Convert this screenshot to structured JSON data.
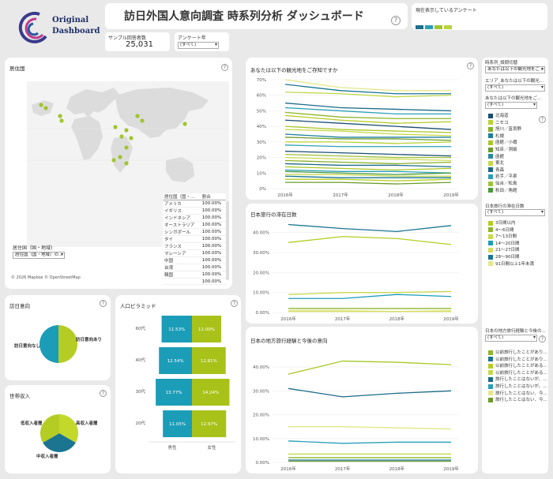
{
  "logo": {
    "line1": "Original",
    "line2": "Dashboard"
  },
  "header": {
    "title": "訪日外国人意向調査 時系列分析 ダッシュボード",
    "help": "?"
  },
  "kpi": {
    "label": "サンプル回答者数",
    "value": "25,031"
  },
  "filter_year": {
    "label": "アンケート年",
    "value": "(すべて)"
  },
  "current_survey": {
    "label": "現在表示しているアンケート",
    "colors": [
      "#1d6f8c",
      "#2aa0b7",
      "#a2c42e",
      "#b9d33a"
    ]
  },
  "map": {
    "title": "居住国",
    "help": "?",
    "search_label": "居住国（国・地域)",
    "search_placeholder": "居住国（国・地域）の...",
    "credit": "© 2026 Mapbox © OpenStreetMap",
    "table": {
      "headers": [
        "居住国（国・...",
        "割合"
      ],
      "rows": [
        [
          "アメリカ",
          "100.00%"
        ],
        [
          "イギリス",
          "100.00%"
        ],
        [
          "インドネシア",
          "100.00%"
        ],
        [
          "オーストラリア",
          "100.00%"
        ],
        [
          "シンガポール",
          "100.00%"
        ],
        [
          "タイ",
          "100.00%"
        ],
        [
          "フランス",
          "100.00%"
        ],
        [
          "マレーシア",
          "100.00%"
        ],
        [
          "中国",
          "100.00%"
        ],
        [
          "台湾",
          "100.00%"
        ],
        [
          "韓国",
          "100.00%"
        ],
        [
          "",
          "100.00%"
        ]
      ]
    }
  },
  "intent": {
    "title": "訪日意向",
    "help": "?",
    "labels": [
      "訪日意向なし",
      "訪日意向あり"
    ],
    "colors": [
      "#1b9db8",
      "#b5cc24"
    ]
  },
  "income": {
    "title": "世帯収入",
    "help": "?",
    "labels": [
      "低収入者層",
      "高収入者層",
      "中収入者層"
    ],
    "colors": [
      "#b5cc24",
      "#c2d92c",
      "#1b7591"
    ]
  },
  "pyramid": {
    "title": "人口ピラミッド",
    "help": "?",
    "rows": [
      {
        "age": "60代",
        "male": "11.53%",
        "female": "11.09%"
      },
      {
        "age": "40代",
        "male": "12.54%",
        "female": "12.81%"
      },
      {
        "age": "30代",
        "male": "13.77%",
        "female": "14.24%"
      },
      {
        "age": "20代",
        "male": "11.05%",
        "female": "12.97%"
      }
    ],
    "xlabels": [
      "男性",
      "女性"
    ],
    "colors": {
      "male": "#1b9db8",
      "female": "#a9c21a"
    }
  },
  "right_filters": {
    "f1_label": "時系列_設問切替",
    "f1_value": "あなたは以下の観光地をご...",
    "f2_label": "エリア_あなたは以下の観光...",
    "f2_value": "(すべて)",
    "f3_label": "あなたは以下の観光地をご...",
    "f3_value": "(すべて)",
    "f4_label": "日本旅行の滞在日数",
    "f4_value": "(すべて)",
    "f5_label": "日本の地方旅行経験と今後の...",
    "f5_value": "(すべて)"
  },
  "legend1": [
    {
      "label": "北海道",
      "color": "#1b4f72"
    },
    {
      "label": "ニセコ",
      "color": "#b8d232"
    },
    {
      "label": "旭川／富良野",
      "color": "#8bb02a"
    },
    {
      "label": "札幌",
      "color": "#1d7f9a"
    },
    {
      "label": "函館／小樽",
      "color": "#a8c828"
    },
    {
      "label": "知床／洞爺",
      "color": "#6b9c2c"
    },
    {
      "label": "函館",
      "color": "#2a8aa0"
    },
    {
      "label": "東北",
      "color": "#c2d84a"
    },
    {
      "label": "青森",
      "color": "#1b6a88"
    },
    {
      "label": "岩手／平泉",
      "color": "#2c9fb5"
    },
    {
      "label": "仙台／松島",
      "color": "#9ec23a"
    },
    {
      "label": "秋田／角館",
      "color": "#4a9a3a"
    }
  ],
  "legend2": [
    {
      "label": "3日間以内",
      "color": "#b5cc24"
    },
    {
      "label": "4〜6日間",
      "color": "#8fb52a"
    },
    {
      "label": "7〜13日間",
      "color": "#c8d84a"
    },
    {
      "label": "14〜20日間",
      "color": "#1b9db8"
    },
    {
      "label": "21〜27日間",
      "color": "#d2dd5a"
    },
    {
      "label": "28〜90日間",
      "color": "#1b7591"
    },
    {
      "label": "91日間以上1年未満",
      "color": "#e2e88a"
    }
  ],
  "legend3": [
    {
      "label": "以前旅行したことがあり...",
      "color": "#8fb52a"
    },
    {
      "label": "以前旅行したことがあり...",
      "color": "#1b7591"
    },
    {
      "label": "以前旅行したことがある...",
      "color": "#b5cc24"
    },
    {
      "label": "以前旅行したことがある...",
      "color": "#c8d84a"
    },
    {
      "label": "旅行したことはないが、...",
      "color": "#1b6a88"
    },
    {
      "label": "旅行したことはないが、...",
      "color": "#2aa0b7"
    },
    {
      "label": "旅行したことはない、今...",
      "color": "#e2e88a"
    },
    {
      "label": "旅行したことはない、今...",
      "color": "#6b9c2c"
    }
  ],
  "charts_meta": {
    "c1_title": "あなたは以下の観光地をご存知ですか",
    "c2_title": "日本旅行の滞在日数",
    "c3_title": "日本の地方旅行経験と今後の意向",
    "help": "?"
  },
  "chart_data": [
    {
      "type": "line",
      "title": "あなたは以下の観光地をご存知ですか",
      "x": [
        "2016年",
        "2017年",
        "2018年",
        "2019年"
      ],
      "ylim": [
        0,
        70
      ],
      "yticks": [
        "0%",
        "10%",
        "20%",
        "30%",
        "40%",
        "50%",
        "60%",
        "70%"
      ],
      "series": [
        {
          "color": "#e2e88a",
          "values": [
            70,
            65,
            63,
            63
          ]
        },
        {
          "color": "#1b7591",
          "values": [
            67,
            63,
            61,
            61
          ]
        },
        {
          "color": "#c2d84a",
          "values": [
            62,
            61,
            59,
            60
          ]
        },
        {
          "color": "#1b6a88",
          "values": [
            55,
            52,
            51,
            50
          ]
        },
        {
          "color": "#2aa0b7",
          "values": [
            52,
            50,
            48,
            48
          ]
        },
        {
          "color": "#8fb52a",
          "values": [
            49,
            46,
            45,
            45
          ]
        },
        {
          "color": "#b5cc24",
          "values": [
            47,
            44,
            42,
            43
          ]
        },
        {
          "color": "#1b4f72",
          "values": [
            44,
            42,
            40,
            38
          ]
        },
        {
          "color": "#a8c828",
          "values": [
            40,
            38,
            37,
            36
          ]
        },
        {
          "color": "#c8d84a",
          "values": [
            38,
            37,
            35,
            34
          ]
        },
        {
          "color": "#1d7f9a",
          "values": [
            35,
            33,
            33,
            33
          ]
        },
        {
          "color": "#6b9c2c",
          "values": [
            33,
            32,
            32,
            31
          ]
        },
        {
          "color": "#b8d232",
          "values": [
            30,
            30,
            29,
            30
          ]
        },
        {
          "color": "#2c9fb5",
          "values": [
            28,
            27,
            27,
            27
          ]
        },
        {
          "color": "#1b4f72",
          "values": [
            24,
            23,
            22,
            21
          ]
        },
        {
          "color": "#9ec23a",
          "values": [
            22,
            21,
            20,
            20
          ]
        },
        {
          "color": "#d2dd5a",
          "values": [
            20,
            19,
            19,
            18
          ]
        },
        {
          "color": "#8bb02a",
          "values": [
            18,
            17,
            16,
            17
          ]
        },
        {
          "color": "#1b6a88",
          "values": [
            16,
            15,
            15,
            14
          ]
        },
        {
          "color": "#a8c828",
          "values": [
            14,
            13,
            12,
            13
          ]
        },
        {
          "color": "#2aa0b7",
          "values": [
            12,
            11,
            11,
            10
          ]
        },
        {
          "color": "#4a9a3a",
          "values": [
            11,
            10,
            9,
            10
          ]
        },
        {
          "color": "#c2d84a",
          "values": [
            9,
            9,
            8,
            8
          ]
        },
        {
          "color": "#1b7591",
          "values": [
            8,
            7,
            7,
            7
          ]
        },
        {
          "color": "#b5cc24",
          "values": [
            6,
            6,
            5,
            6
          ]
        },
        {
          "color": "#6b9c2c",
          "values": [
            4,
            4,
            3,
            4
          ]
        }
      ]
    },
    {
      "type": "line",
      "title": "日本旅行の滞在日数",
      "x": [
        "2016年",
        "2017年",
        "2018年",
        "2019年"
      ],
      "ylim": [
        0,
        45
      ],
      "yticks": [
        "0.00%",
        "10.00%",
        "20.00%",
        "30.00%",
        "40.00%"
      ],
      "series": [
        {
          "color": "#1b7591",
          "values": [
            44,
            42,
            40.5,
            43.5
          ]
        },
        {
          "color": "#b5cc24",
          "values": [
            35,
            38,
            37,
            34
          ]
        },
        {
          "color": "#c8d84a",
          "values": [
            9,
            10,
            10,
            10.5
          ]
        },
        {
          "color": "#1b9db8",
          "values": [
            7,
            7,
            9,
            8
          ]
        },
        {
          "color": "#8fb52a",
          "values": [
            2,
            2,
            2,
            2
          ]
        },
        {
          "color": "#e2e88a",
          "values": [
            1,
            1,
            0.5,
            1
          ]
        },
        {
          "color": "#d2dd5a",
          "values": [
            0.5,
            0.5,
            0.5,
            0.5
          ]
        }
      ]
    },
    {
      "type": "line",
      "title": "日本の地方旅行経験と今後の意向",
      "x": [
        "2016年",
        "2017年",
        "2018年",
        "2019年"
      ],
      "ylim": [
        0,
        45
      ],
      "yticks": [
        "0.00%",
        "10.00%",
        "20.00%",
        "30.00%",
        "40.00%"
      ],
      "series": [
        {
          "color": "#a8c828",
          "values": [
            37,
            42.5,
            42,
            41
          ]
        },
        {
          "color": "#1b6a88",
          "values": [
            31,
            27.5,
            29,
            30
          ]
        },
        {
          "color": "#e2e88a",
          "values": [
            15,
            15,
            14.5,
            14
          ]
        },
        {
          "color": "#2aa0b7",
          "values": [
            9,
            8,
            8.5,
            8.5
          ]
        },
        {
          "color": "#c8d84a",
          "values": [
            3.5,
            3.5,
            3.5,
            3.5
          ]
        },
        {
          "color": "#8fb52a",
          "values": [
            2,
            2,
            2,
            2
          ]
        },
        {
          "color": "#1b7591",
          "values": [
            1,
            1,
            1,
            1
          ]
        },
        {
          "color": "#6b9c2c",
          "values": [
            0.5,
            0.5,
            0.5,
            0.5
          ]
        }
      ]
    }
  ]
}
